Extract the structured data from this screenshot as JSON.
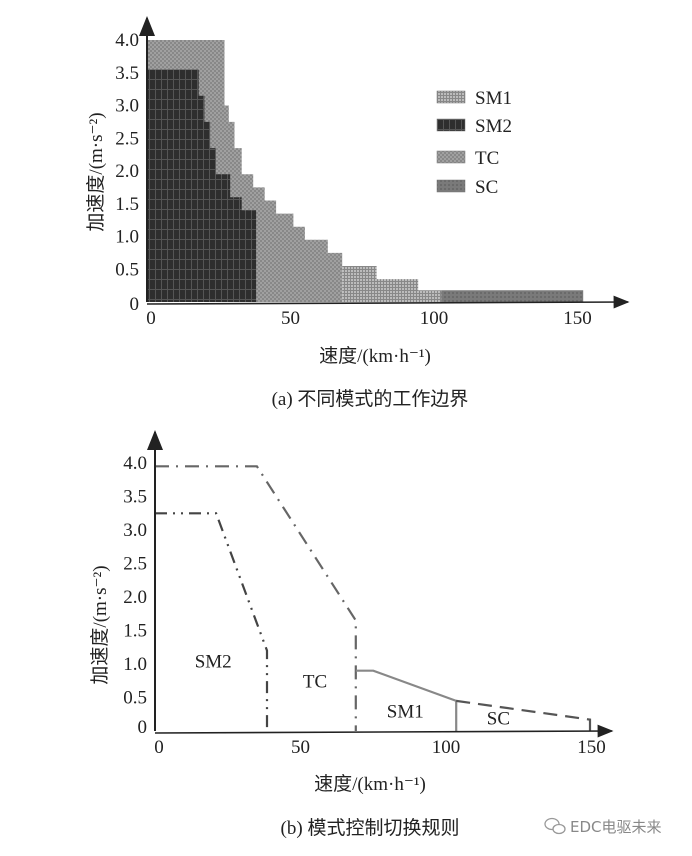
{
  "chart_data": [
    {
      "type": "area",
      "title": "(a) 不同模式的工作边界",
      "xlabel": "速度/(km·h⁻¹)",
      "ylabel": "加速度/(m·s⁻²)",
      "xlim": [
        0,
        160
      ],
      "ylim": [
        0,
        4.0
      ],
      "xticks": [
        "0",
        "50",
        "100",
        "150"
      ],
      "yticks": [
        "0",
        "0.5",
        "1.0",
        "1.5",
        "2.0",
        "2.5",
        "3.0",
        "3.5",
        "4.0"
      ],
      "legend_position": "top-right",
      "legend": [
        "SM1",
        "SM2",
        "TC",
        "SC"
      ],
      "series": [
        {
          "name": "TC",
          "color": "#9a9a9a",
          "points": [
            [
              0,
              0
            ],
            [
              0,
              4.0
            ],
            [
              27,
              4.0
            ],
            [
              27,
              3.5
            ],
            [
              27,
              3.0
            ],
            [
              28.5,
              3.0
            ],
            [
              28.5,
              2.75
            ],
            [
              30.5,
              2.75
            ],
            [
              30.5,
              2.35
            ],
            [
              33,
              2.35
            ],
            [
              33,
              1.95
            ],
            [
              37,
              1.95
            ],
            [
              37,
              1.75
            ],
            [
              41,
              1.75
            ],
            [
              41,
              1.55
            ],
            [
              45,
              1.55
            ],
            [
              45,
              1.35
            ],
            [
              51,
              1.35
            ],
            [
              51,
              1.15
            ],
            [
              55,
              1.15
            ],
            [
              55,
              0.95
            ],
            [
              63,
              0.95
            ],
            [
              63,
              0.75
            ],
            [
              68,
              0.75
            ],
            [
              68,
              0
            ]
          ]
        },
        {
          "name": "SM1",
          "color": "#b4b4b4",
          "points": [
            [
              68,
              0
            ],
            [
              68,
              0.55
            ],
            [
              80,
              0.55
            ],
            [
              80,
              0.35
            ],
            [
              94.5,
              0.35
            ],
            [
              94.5,
              0.18
            ],
            [
              102.5,
              0.18
            ],
            [
              102.5,
              0
            ]
          ]
        },
        {
          "name": "SC",
          "color": "#7a7a7a",
          "points": [
            [
              102.5,
              0
            ],
            [
              102.5,
              0.18
            ],
            [
              152,
              0.18
            ],
            [
              152,
              0
            ]
          ]
        },
        {
          "name": "SM2",
          "color": "#2e2e2e",
          "points": [
            [
              0,
              0
            ],
            [
              0,
              3.55
            ],
            [
              18,
              3.55
            ],
            [
              18,
              3.15
            ],
            [
              20,
              3.15
            ],
            [
              20,
              2.75
            ],
            [
              22,
              2.75
            ],
            [
              22,
              2.35
            ],
            [
              24,
              2.35
            ],
            [
              24,
              1.95
            ],
            [
              29,
              1.95
            ],
            [
              29,
              1.6
            ],
            [
              33,
              1.6
            ],
            [
              33,
              1.4
            ],
            [
              38,
              1.4
            ],
            [
              38,
              0
            ]
          ]
        }
      ]
    },
    {
      "type": "line",
      "title": "(b) 模式控制切换规则",
      "xlabel": "速度/(km·h⁻¹)",
      "ylabel": "加速度/(m·s⁻²)",
      "xlim": [
        0,
        160
      ],
      "ylim": [
        0,
        4.0
      ],
      "xticks": [
        "0",
        "50",
        "100",
        "150"
      ],
      "yticks": [
        "0",
        "0.5",
        "1.0",
        "1.5",
        "2.0",
        "2.5",
        "3.0",
        "3.5",
        "4.0"
      ],
      "series": [
        {
          "name": "TC boundary",
          "style": "dash-dot",
          "points": [
            [
              0,
              3.95
            ],
            [
              35,
              3.95
            ],
            [
              69,
              1.65
            ],
            [
              69,
              0
            ]
          ]
        },
        {
          "name": "SM2 boundary",
          "style": "dash-dot-dot",
          "points": [
            [
              0,
              3.25
            ],
            [
              21,
              3.25
            ],
            [
              38.5,
              1.2
            ],
            [
              38.5,
              0
            ]
          ]
        },
        {
          "name": "SM1 boundary",
          "style": "solid",
          "points": [
            [
              69,
              0.9
            ],
            [
              75,
              0.9
            ],
            [
              103.5,
              0.45
            ],
            [
              103.5,
              0
            ]
          ]
        },
        {
          "name": "SC boundary",
          "style": "dashed",
          "points": [
            [
              103.5,
              0.45
            ],
            [
              149.5,
              0.17
            ],
            [
              149.5,
              0
            ]
          ]
        }
      ],
      "region_labels": [
        {
          "text": "SM2",
          "x": 20,
          "y": 0.95
        },
        {
          "text": "TC",
          "x": 55,
          "y": 0.65
        },
        {
          "text": "SM1",
          "x": 86,
          "y": 0.2
        },
        {
          "text": "SC",
          "x": 118,
          "y": 0.1
        }
      ]
    }
  ],
  "watermark": "EDC电驱未来"
}
